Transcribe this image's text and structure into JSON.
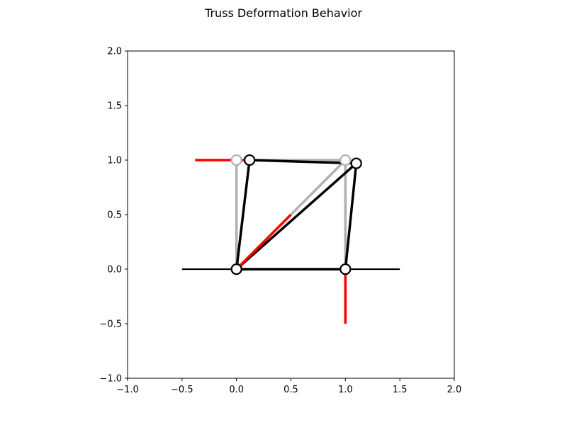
{
  "chart_data": {
    "type": "scatter",
    "title": "Truss Deformation Behavior",
    "xlabel": "",
    "ylabel": "",
    "xlim": [
      -1.0,
      2.0
    ],
    "ylim": [
      -1.0,
      2.0
    ],
    "xticks": [
      -1.0,
      -0.5,
      0.0,
      0.5,
      1.0,
      1.5,
      2.0
    ],
    "xtick_labels": [
      "−1.0",
      "−0.5",
      "0.0",
      "0.5",
      "1.0",
      "1.5",
      "2.0"
    ],
    "yticks": [
      -1.0,
      -0.5,
      0.0,
      0.5,
      1.0,
      1.5,
      2.0
    ],
    "ytick_labels": [
      "−1.0",
      "−0.5",
      "0.0",
      "0.5",
      "1.0",
      "1.5",
      "2.0"
    ],
    "grid": false,
    "ground": {
      "x": [
        -0.5,
        1.5
      ],
      "y": [
        0.0,
        0.0
      ],
      "color": "#000000"
    },
    "undeformed": {
      "color": "#b0b0b0",
      "nodes": [
        [
          0.0,
          0.0
        ],
        [
          1.0,
          0.0
        ],
        [
          1.0,
          1.0
        ],
        [
          0.0,
          1.0
        ]
      ],
      "members": [
        [
          0,
          1
        ],
        [
          1,
          2
        ],
        [
          2,
          3
        ],
        [
          3,
          0
        ],
        [
          0,
          2
        ]
      ]
    },
    "deformed": {
      "color": "#000000",
      "nodes": [
        [
          0.0,
          0.0
        ],
        [
          1.0,
          0.0
        ],
        [
          1.1,
          0.97
        ],
        [
          0.12,
          1.0
        ]
      ],
      "members": [
        [
          0,
          1
        ],
        [
          1,
          2
        ],
        [
          2,
          3
        ],
        [
          3,
          0
        ],
        [
          0,
          2
        ]
      ]
    },
    "forces": {
      "color": "#ff0000",
      "arrows": [
        {
          "from": [
            -0.38,
            1.0
          ],
          "to": [
            0.12,
            1.0
          ]
        },
        {
          "from": [
            0.5,
            0.5
          ],
          "to": [
            0.0,
            0.0
          ]
        },
        {
          "from": [
            1.0,
            -0.5
          ],
          "to": [
            1.0,
            0.0
          ]
        }
      ]
    }
  }
}
